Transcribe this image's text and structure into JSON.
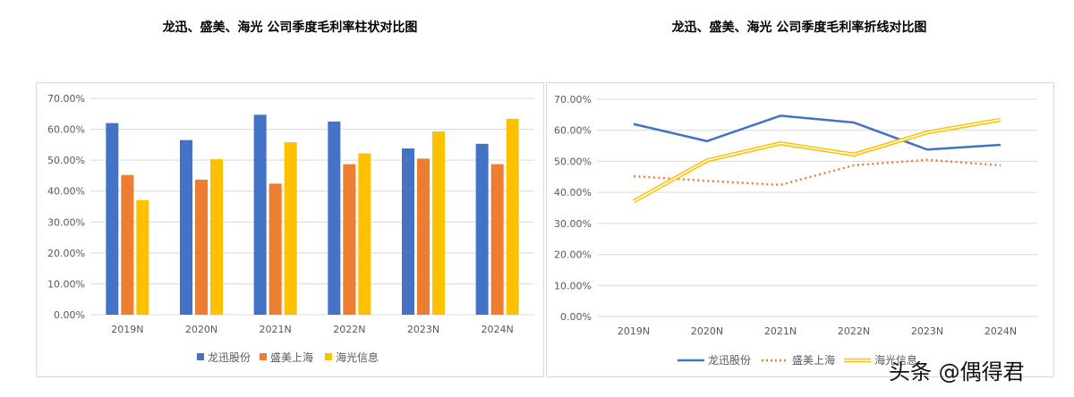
{
  "chart_data": [
    {
      "type": "bar",
      "title": "龙迅、盛美、海光 公司季度毛利率柱状对比图",
      "categories": [
        "2019N",
        "2020N",
        "2021N",
        "2022N",
        "2023N",
        "2024N"
      ],
      "series": [
        {
          "name": "龙迅股份",
          "color": "#4472c4",
          "values": [
            0.62,
            0.565,
            0.647,
            0.625,
            0.538,
            0.553
          ]
        },
        {
          "name": "盛美上海",
          "color": "#ed7d31",
          "values": [
            0.452,
            0.437,
            0.424,
            0.487,
            0.505,
            0.487
          ]
        },
        {
          "name": "海光信息",
          "color": "#ffc000",
          "values": [
            0.371,
            0.503,
            0.558,
            0.522,
            0.593,
            0.634
          ]
        }
      ],
      "yticks": [
        "0.00%",
        "10.00%",
        "20.00%",
        "30.00%",
        "40.00%",
        "50.00%",
        "60.00%",
        "70.00%"
      ],
      "ylim": [
        0,
        0.7
      ],
      "grid": true,
      "legend": "bottom"
    },
    {
      "type": "line",
      "title": "龙迅、盛美、海光 公司季度毛利率折线对比图",
      "categories": [
        "2019N",
        "2020N",
        "2021N",
        "2022N",
        "2023N",
        "2024N"
      ],
      "series": [
        {
          "name": "龙迅股份",
          "color": "#4472c4",
          "style": "solid",
          "values": [
            0.62,
            0.565,
            0.647,
            0.625,
            0.538,
            0.553
          ]
        },
        {
          "name": "盛美上海",
          "color": "#ed7d31",
          "style": "dotted",
          "values": [
            0.452,
            0.437,
            0.424,
            0.487,
            0.505,
            0.487
          ]
        },
        {
          "name": "海光信息",
          "color": "#ffc000",
          "style": "double",
          "values": [
            0.371,
            0.503,
            0.558,
            0.522,
            0.593,
            0.634
          ]
        }
      ],
      "yticks": [
        "0.00%",
        "10.00%",
        "20.00%",
        "30.00%",
        "40.00%",
        "50.00%",
        "60.00%",
        "70.00%"
      ],
      "ylim": [
        0,
        0.7
      ],
      "grid": true,
      "legend": "bottom"
    }
  ],
  "watermark": "头条 @偶得君"
}
